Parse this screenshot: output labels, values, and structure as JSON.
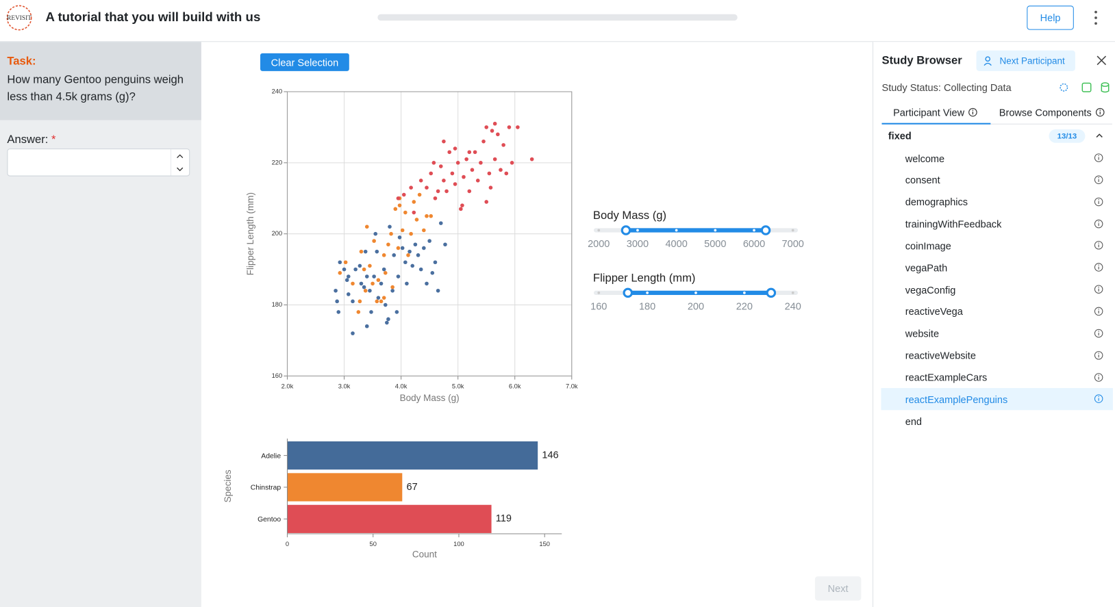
{
  "header": {
    "logo": "REVISIT",
    "title": "A tutorial that you will build with us",
    "help": "Help"
  },
  "task": {
    "label": "Task:",
    "question": "How many Gentoo penguins weigh less than 4.5k grams (g)?",
    "answer_label": "Answer:",
    "required": "*"
  },
  "clear_button": "Clear Selection",
  "next_button": "Next",
  "chart_data": [
    {
      "type": "scatter",
      "xlabel": "Body Mass (g)",
      "ylabel": "Flipper Length (mm)",
      "xlim": [
        2000,
        7000
      ],
      "ylim": [
        160,
        240
      ],
      "xticks": [
        {
          "value": 2000,
          "label": "2.0k"
        },
        {
          "value": 3000,
          "label": "3.0k"
        },
        {
          "value": 4000,
          "label": "4.0k"
        },
        {
          "value": 5000,
          "label": "5.0k"
        },
        {
          "value": 6000,
          "label": "6.0k"
        },
        {
          "value": 7000,
          "label": "7.0k"
        }
      ],
      "yticks": [
        160,
        180,
        200,
        220,
        240
      ],
      "grid": true,
      "series": [
        {
          "color": "#4a6f9f",
          "x": [
            3150,
            3400,
            2850,
            2875,
            2900,
            2925,
            3000,
            3050,
            3075,
            3150,
            3200,
            3275,
            3300,
            3350,
            3400,
            3450,
            3475,
            3525,
            3575,
            3600,
            3650,
            3700,
            3725,
            3775,
            3800,
            3850,
            3875,
            3925,
            3950,
            3975,
            4025,
            4075,
            4100,
            4150,
            4200,
            4250,
            4300,
            4350,
            4400,
            4450,
            4500,
            4550,
            4600,
            4650,
            4700,
            4775,
            3550,
            3750,
            3075,
            3375
          ],
          "y": [
            172,
            174,
            184,
            181,
            178,
            192,
            190,
            187,
            183,
            181,
            190,
            191,
            186,
            185,
            188,
            184,
            178,
            188,
            195,
            182,
            186,
            190,
            180,
            176,
            202,
            184,
            194,
            178,
            188,
            199,
            196,
            192,
            186,
            195,
            191,
            197,
            194,
            190,
            196,
            186,
            198,
            189,
            192,
            184,
            203,
            197,
            200,
            175,
            188,
            195
          ]
        },
        {
          "color": "#ef8730",
          "x": [
            3250,
            3300,
            3350,
            3400,
            3450,
            3500,
            3525,
            3600,
            3650,
            3700,
            3725,
            3775,
            3825,
            3850,
            3900,
            3950,
            3975,
            4025,
            4075,
            4125,
            4175,
            4225,
            4275,
            4325,
            4400,
            4450,
            4525,
            2925,
            3025,
            3150,
            3275,
            3375,
            3575,
            3700,
            3975
          ],
          "y": [
            178,
            195,
            190,
            202,
            191,
            186,
            198,
            187,
            181,
            194,
            189,
            197,
            200,
            185,
            207,
            196,
            210,
            201,
            206,
            194,
            200,
            209,
            204,
            211,
            201,
            205,
            205,
            189,
            192,
            186,
            181,
            184,
            181,
            182,
            208
          ]
        },
        {
          "color": "#df4d55",
          "x": [
            3950,
            4050,
            4175,
            4225,
            4350,
            4450,
            4525,
            4600,
            4650,
            4700,
            4750,
            4800,
            4850,
            4900,
            4950,
            5000,
            5050,
            5100,
            5150,
            5200,
            5250,
            5300,
            5350,
            5400,
            5450,
            5500,
            5550,
            5600,
            5650,
            5700,
            5750,
            5800,
            5850,
            5900,
            5950,
            6050,
            6300,
            5650,
            5500,
            4950,
            4575,
            5075,
            4750,
            5200,
            5575
          ],
          "y": [
            210,
            211,
            213,
            206,
            215,
            213,
            217,
            210,
            212,
            219,
            215,
            212,
            223,
            217,
            214,
            220,
            207,
            216,
            221,
            212,
            218,
            223,
            215,
            220,
            226,
            209,
            217,
            229,
            221,
            228,
            218,
            225,
            217,
            230,
            220,
            230,
            221,
            231,
            230,
            224,
            220,
            208,
            226,
            223,
            213
          ]
        }
      ]
    },
    {
      "type": "bar",
      "orientation": "horizontal",
      "xlabel": "Count",
      "ylabel": "Species",
      "categories": [
        "Adelie",
        "Chinstrap",
        "Gentoo"
      ],
      "values": [
        146,
        67,
        119
      ],
      "colors": [
        "#446b99",
        "#ef8730",
        "#df4d55"
      ],
      "xlim": [
        0,
        160
      ],
      "xticks": [
        0,
        50,
        100,
        150
      ]
    }
  ],
  "filters": [
    {
      "label": "Body Mass (g)",
      "ticks": [
        2000,
        3000,
        4000,
        5000,
        6000,
        7000
      ],
      "values": [
        2700,
        6300
      ]
    },
    {
      "label": "Flipper Length (mm)",
      "ticks": [
        160,
        180,
        200,
        220,
        240
      ],
      "values": [
        172,
        231
      ]
    }
  ],
  "sidebar": {
    "title": "Study Browser",
    "next_participant": "Next Participant",
    "status": "Study Status: Collecting Data",
    "tabs": [
      "Participant View",
      "Browse Components"
    ],
    "group": "fixed",
    "progress": "13/13",
    "items": [
      "welcome",
      "consent",
      "demographics",
      "trainingWithFeedback",
      "coinImage",
      "vegaPath",
      "vegaConfig",
      "reactiveVega",
      "website",
      "reactiveWebsite",
      "reactExampleCars",
      "reactExamplePenguins",
      "end"
    ],
    "selected": 11
  }
}
